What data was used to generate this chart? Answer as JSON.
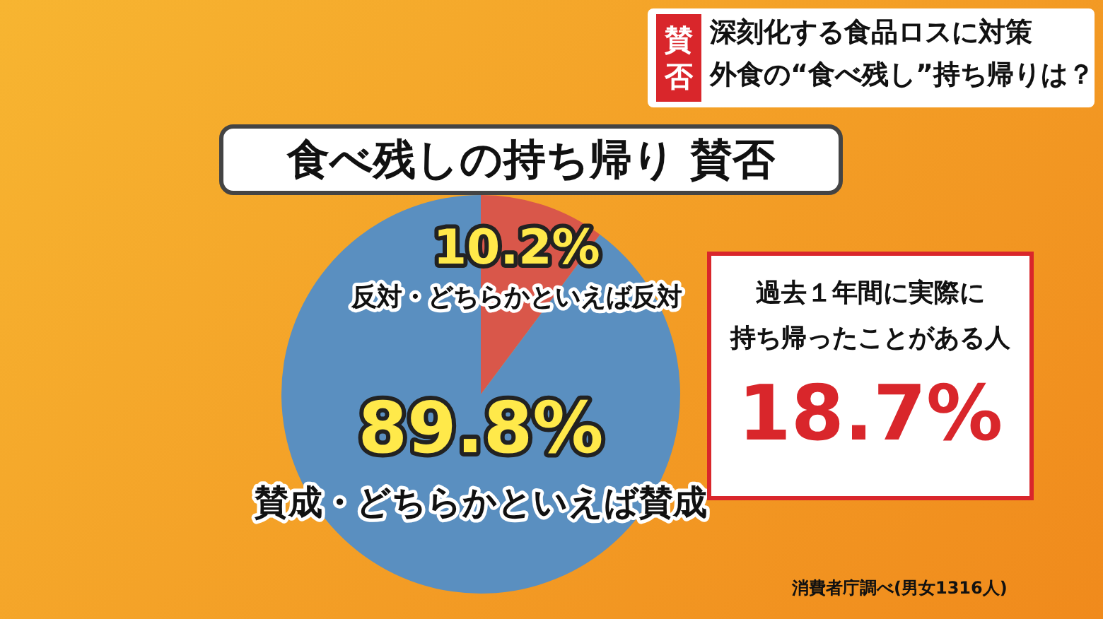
{
  "chart_data": {
    "type": "pie",
    "title": "食べ残しの持ち帰り 賛否",
    "categories": [
      "反対・どちらかといえば反対",
      "賛成・どちらかといえば賛成"
    ],
    "values": [
      10.2,
      89.8
    ],
    "colors": [
      "#d9574a",
      "#5a8fc0"
    ],
    "value_labels": [
      "10.2%",
      "89.8%"
    ],
    "legend": false,
    "annotations": [
      "賛否",
      "深刻化する食品ロスに対策",
      "外食の“食べ残し”持ち帰りは？",
      "過去１年間に実際に",
      "持ち帰ったことがある人",
      "18.7%",
      "消費者庁調べ(男女1316人)"
    ]
  }
}
